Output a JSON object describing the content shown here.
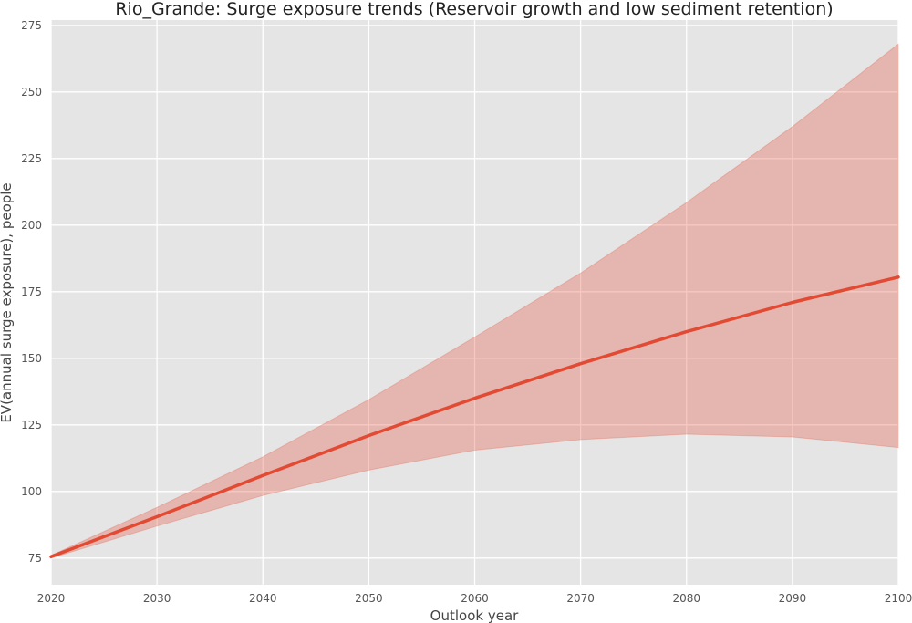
{
  "chart_data": {
    "type": "area",
    "title": "Rio_Grande: Surge exposure trends (Reservoir growth and low sediment retention)",
    "xlabel": "Outlook year",
    "ylabel": "EV(annual surge exposure), people",
    "xlim": [
      2020,
      2100
    ],
    "ylim": [
      65,
      277
    ],
    "x_ticks": [
      2020,
      2030,
      2040,
      2050,
      2060,
      2070,
      2080,
      2090,
      2100
    ],
    "y_ticks": [
      75,
      100,
      125,
      150,
      175,
      200,
      225,
      250,
      275
    ],
    "grid": true,
    "x": [
      2020,
      2030,
      2040,
      2050,
      2060,
      2070,
      2080,
      2090,
      2100
    ],
    "series": [
      {
        "values": [
          75.5,
          90.5,
          106,
          121,
          135,
          148,
          160,
          171,
          180.5
        ],
        "lower": [
          75,
          87,
          98.5,
          108,
          115.5,
          119.5,
          121.5,
          120.5,
          116.5
        ],
        "upper": [
          76,
          94,
          113,
          134.5,
          158,
          182,
          208.5,
          237,
          268
        ],
        "color": "#e24a33",
        "band_color": "#e24a33"
      }
    ],
    "background_color": "#e5e5e5",
    "grid_color": "#ffffff"
  }
}
